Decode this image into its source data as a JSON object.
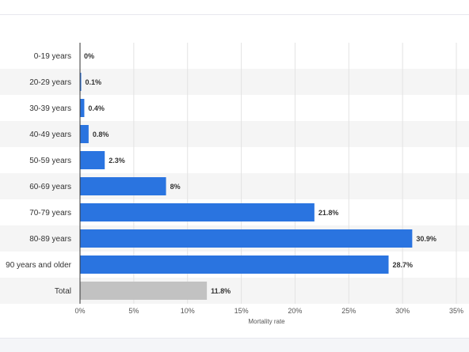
{
  "chart_data": {
    "type": "bar",
    "orientation": "horizontal",
    "categories": [
      "0-19 years",
      "20-29 years",
      "30-39 years",
      "40-49 years",
      "50-59 years",
      "60-69 years",
      "70-79 years",
      "80-89 years",
      "90 years and older",
      "Total"
    ],
    "values": [
      0,
      0.1,
      0.4,
      0.8,
      2.3,
      8,
      21.8,
      30.9,
      28.7,
      11.8
    ],
    "value_labels": [
      "0%",
      "0.1%",
      "0.4%",
      "0.8%",
      "2.3%",
      "8%",
      "21.8%",
      "30.9%",
      "28.7%",
      "11.8%"
    ],
    "bar_colors": [
      "#2a74e0",
      "#2a74e0",
      "#2a74e0",
      "#2a74e0",
      "#2a74e0",
      "#2a74e0",
      "#2a74e0",
      "#2a74e0",
      "#2a74e0",
      "#c2c2c2"
    ],
    "xlabel": "Mortality rate",
    "ylabel": "",
    "xlim": [
      0,
      35
    ],
    "x_ticks": [
      0,
      5,
      10,
      15,
      20,
      25,
      30,
      35
    ],
    "x_tick_labels": [
      "0%",
      "5%",
      "10%",
      "15%",
      "20%",
      "25%",
      "30%",
      "35%"
    ],
    "grid": true,
    "alternate_row_shading": "#f5f5f5",
    "legend": "none"
  }
}
